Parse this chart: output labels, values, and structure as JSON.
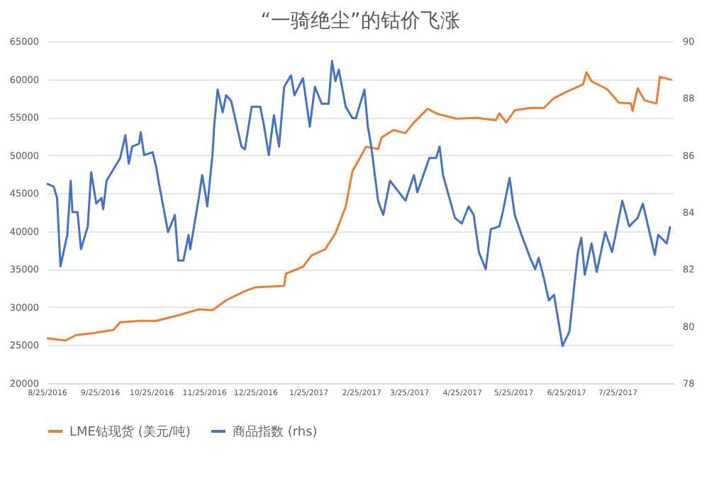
{
  "chart_data": {
    "type": "line",
    "title": "“一骑绝尘”的钴价飞涨",
    "xlim": [
      "2016-08-25",
      "2017-08-27"
    ],
    "xticks": [
      {
        "value": "2016-08-25",
        "label": "8/25/2016"
      },
      {
        "value": "2016-09-25",
        "label": "9/25/2016"
      },
      {
        "value": "2016-10-25",
        "label": "10/25/2016"
      },
      {
        "value": "2016-11-25",
        "label": "11/25/2016"
      },
      {
        "value": "2016-12-25",
        "label": "12/25/2016"
      },
      {
        "value": "2017-01-25",
        "label": "1/25/2017"
      },
      {
        "value": "2017-02-25",
        "label": "2/25/2017"
      },
      {
        "value": "2017-03-25",
        "label": "3/25/2017"
      },
      {
        "value": "2017-04-25",
        "label": "4/25/2017"
      },
      {
        "value": "2017-05-25",
        "label": "5/25/2017"
      },
      {
        "value": "2017-06-25",
        "label": "6/25/2017"
      },
      {
        "value": "2017-07-25",
        "label": "7/25/2017"
      }
    ],
    "ylim": [
      20000,
      65000
    ],
    "yticks": [
      20000,
      25000,
      30000,
      35000,
      40000,
      45000,
      50000,
      55000,
      60000,
      65000
    ],
    "y2lim": [
      78,
      90
    ],
    "y2ticks": [
      78,
      80,
      82,
      84,
      86,
      88,
      90
    ],
    "grid": "y",
    "legend": "bottom",
    "series": [
      {
        "name": "LME钴现货 (美元/吨)",
        "color": "#ed7d31",
        "x": [
          "2016-08-25",
          "2016-09-05",
          "2016-09-11",
          "2016-09-22",
          "2016-10-03",
          "2016-10-07",
          "2016-10-19",
          "2016-10-28",
          "2016-11-08",
          "2016-11-22",
          "2016-11-30",
          "2016-12-08",
          "2016-12-19",
          "2016-12-25",
          "2017-01-11",
          "2017-01-12",
          "2017-01-22",
          "2017-01-27",
          "2017-02-04",
          "2017-02-10",
          "2017-02-16",
          "2017-02-20",
          "2017-02-28",
          "2017-03-07",
          "2017-03-09",
          "2017-03-16",
          "2017-03-23",
          "2017-03-28",
          "2017-04-05",
          "2017-04-11",
          "2017-04-22",
          "2017-05-04",
          "2017-05-15",
          "2017-05-17",
          "2017-05-21",
          "2017-05-26",
          "2017-06-04",
          "2017-06-12",
          "2017-06-18",
          "2017-06-26",
          "2017-07-05",
          "2017-07-07",
          "2017-07-10",
          "2017-07-19",
          "2017-07-26",
          "2017-08-02",
          "2017-08-03",
          "2017-08-06",
          "2017-08-10",
          "2017-08-17",
          "2017-08-19",
          "2017-08-26"
        ],
        "values": [
          25900,
          25600,
          26300,
          26600,
          27000,
          28000,
          28200,
          28200,
          28800,
          29700,
          29600,
          30900,
          32100,
          32600,
          32800,
          34400,
          35300,
          36800,
          37600,
          39700,
          43200,
          47900,
          51100,
          50800,
          52300,
          53300,
          52900,
          54300,
          56100,
          55400,
          54800,
          54900,
          54600,
          55500,
          54300,
          55900,
          56200,
          56200,
          57500,
          58400,
          59300,
          60900,
          59700,
          58700,
          56900,
          56800,
          55800,
          58800,
          57200,
          56800,
          60300,
          59900
        ]
      },
      {
        "name": "商品指数 (rhs)",
        "color": "#4472c4",
        "axis": "y2",
        "x": [
          "2016-08-25",
          "2016-08-29",
          "2016-08-31",
          "2016-09-02",
          "2016-09-06",
          "2016-09-08",
          "2016-09-09",
          "2016-09-12",
          "2016-09-14",
          "2016-09-18",
          "2016-09-20",
          "2016-09-23",
          "2016-09-26",
          "2016-09-27",
          "2016-09-29",
          "2016-10-04",
          "2016-10-07",
          "2016-10-10",
          "2016-10-12",
          "2016-10-14",
          "2016-10-18",
          "2016-10-19",
          "2016-10-21",
          "2016-10-26",
          "2016-10-28",
          "2016-10-30",
          "2016-11-04",
          "2016-11-08",
          "2016-11-10",
          "2016-11-13",
          "2016-11-16",
          "2016-11-17",
          "2016-11-22",
          "2016-11-24",
          "2016-11-26",
          "2016-11-27",
          "2016-11-30",
          "2016-12-01",
          "2016-12-03",
          "2016-12-06",
          "2016-12-08",
          "2016-12-11",
          "2016-12-14",
          "2016-12-17",
          "2016-12-19",
          "2016-12-23",
          "2016-12-28",
          "2016-12-30",
          "2017-01-02",
          "2017-01-05",
          "2017-01-08",
          "2017-01-11",
          "2017-01-15",
          "2017-01-17",
          "2017-01-22",
          "2017-01-26",
          "2017-01-29",
          "2017-02-02",
          "2017-02-06",
          "2017-02-08",
          "2017-02-10",
          "2017-02-12",
          "2017-02-16",
          "2017-02-20",
          "2017-02-22",
          "2017-02-27",
          "2017-03-01",
          "2017-03-03",
          "2017-03-07",
          "2017-03-10",
          "2017-03-14",
          "2017-03-23",
          "2017-03-28",
          "2017-03-30",
          "2017-04-06",
          "2017-04-10",
          "2017-04-12",
          "2017-04-14",
          "2017-04-21",
          "2017-04-25",
          "2017-04-29",
          "2017-05-02",
          "2017-05-05",
          "2017-05-09",
          "2017-05-12",
          "2017-05-17",
          "2017-05-19",
          "2017-05-23",
          "2017-05-26",
          "2017-05-30",
          "2017-06-04",
          "2017-06-07",
          "2017-06-09",
          "2017-06-12",
          "2017-06-15",
          "2017-06-18",
          "2017-06-23",
          "2017-06-27",
          "2017-07-02",
          "2017-07-04",
          "2017-07-06",
          "2017-07-10",
          "2017-07-13",
          "2017-07-18",
          "2017-07-22",
          "2017-07-28",
          "2017-08-01",
          "2017-08-06",
          "2017-08-09",
          "2017-08-16",
          "2017-08-18",
          "2017-08-23",
          "2017-08-25"
        ],
        "values": [
          85.0,
          84.9,
          84.5,
          82.1,
          83.2,
          85.1,
          84.0,
          84.0,
          82.7,
          83.5,
          85.4,
          84.3,
          84.5,
          84.1,
          85.1,
          85.6,
          85.9,
          86.7,
          85.7,
          86.3,
          86.4,
          86.8,
          86.0,
          86.1,
          85.6,
          84.9,
          83.3,
          83.9,
          82.3,
          82.3,
          83.2,
          82.7,
          84.5,
          85.3,
          84.6,
          84.2,
          86.0,
          87.0,
          88.3,
          87.5,
          88.1,
          87.9,
          87.1,
          86.3,
          86.2,
          87.7,
          87.7,
          87.1,
          86.0,
          87.4,
          86.3,
          88.4,
          88.8,
          88.1,
          88.7,
          87.0,
          88.4,
          87.8,
          87.8,
          89.3,
          88.6,
          89.0,
          87.7,
          87.3,
          87.3,
          88.3,
          87.0,
          86.3,
          84.4,
          83.9,
          85.1,
          84.4,
          85.3,
          84.7,
          85.9,
          85.9,
          86.3,
          85.3,
          83.8,
          83.6,
          84.2,
          83.9,
          82.6,
          82.0,
          83.4,
          83.5,
          84.0,
          85.2,
          83.9,
          83.2,
          82.4,
          82.0,
          82.4,
          81.7,
          80.9,
          81.1,
          79.3,
          79.8,
          82.6,
          83.1,
          81.8,
          82.9,
          81.9,
          83.3,
          82.6,
          84.4,
          83.5,
          83.8,
          84.3,
          82.5,
          83.2,
          82.9,
          83.5
        ]
      }
    ]
  }
}
